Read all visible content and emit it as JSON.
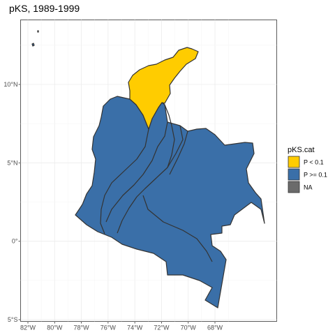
{
  "chart_data": {
    "type": "map",
    "title": "pKS, 1989-1999",
    "xlabel": "",
    "ylabel": "",
    "xlim": [
      -82.5,
      -66.5
    ],
    "ylim": [
      -5.1,
      14.3
    ],
    "grid": true,
    "x_ticks": [
      {
        "value": -82,
        "label": "82°W"
      },
      {
        "value": -80,
        "label": "80°W"
      },
      {
        "value": -78,
        "label": "78°W"
      },
      {
        "value": -76,
        "label": "76°W"
      },
      {
        "value": -74,
        "label": "74°W"
      },
      {
        "value": -72,
        "label": "72°W"
      },
      {
        "value": -70,
        "label": "70°W"
      },
      {
        "value": -68,
        "label": "68°W"
      }
    ],
    "y_ticks": [
      {
        "value": -5,
        "label": "5°S"
      },
      {
        "value": 0,
        "label": "0°"
      },
      {
        "value": 5,
        "label": "5°N"
      },
      {
        "value": 10,
        "label": "10°N"
      }
    ],
    "legend": {
      "title": "pKS.cat",
      "placement": "right",
      "items": [
        {
          "label": "P < 0.1",
          "color": "#FFCC00"
        },
        {
          "label": "P >= 0.1",
          "color": "#3A6FA8"
        },
        {
          "label": "NA",
          "color": "#6B6B6B"
        }
      ]
    },
    "border_color": "#333333",
    "region_count": 7
  }
}
